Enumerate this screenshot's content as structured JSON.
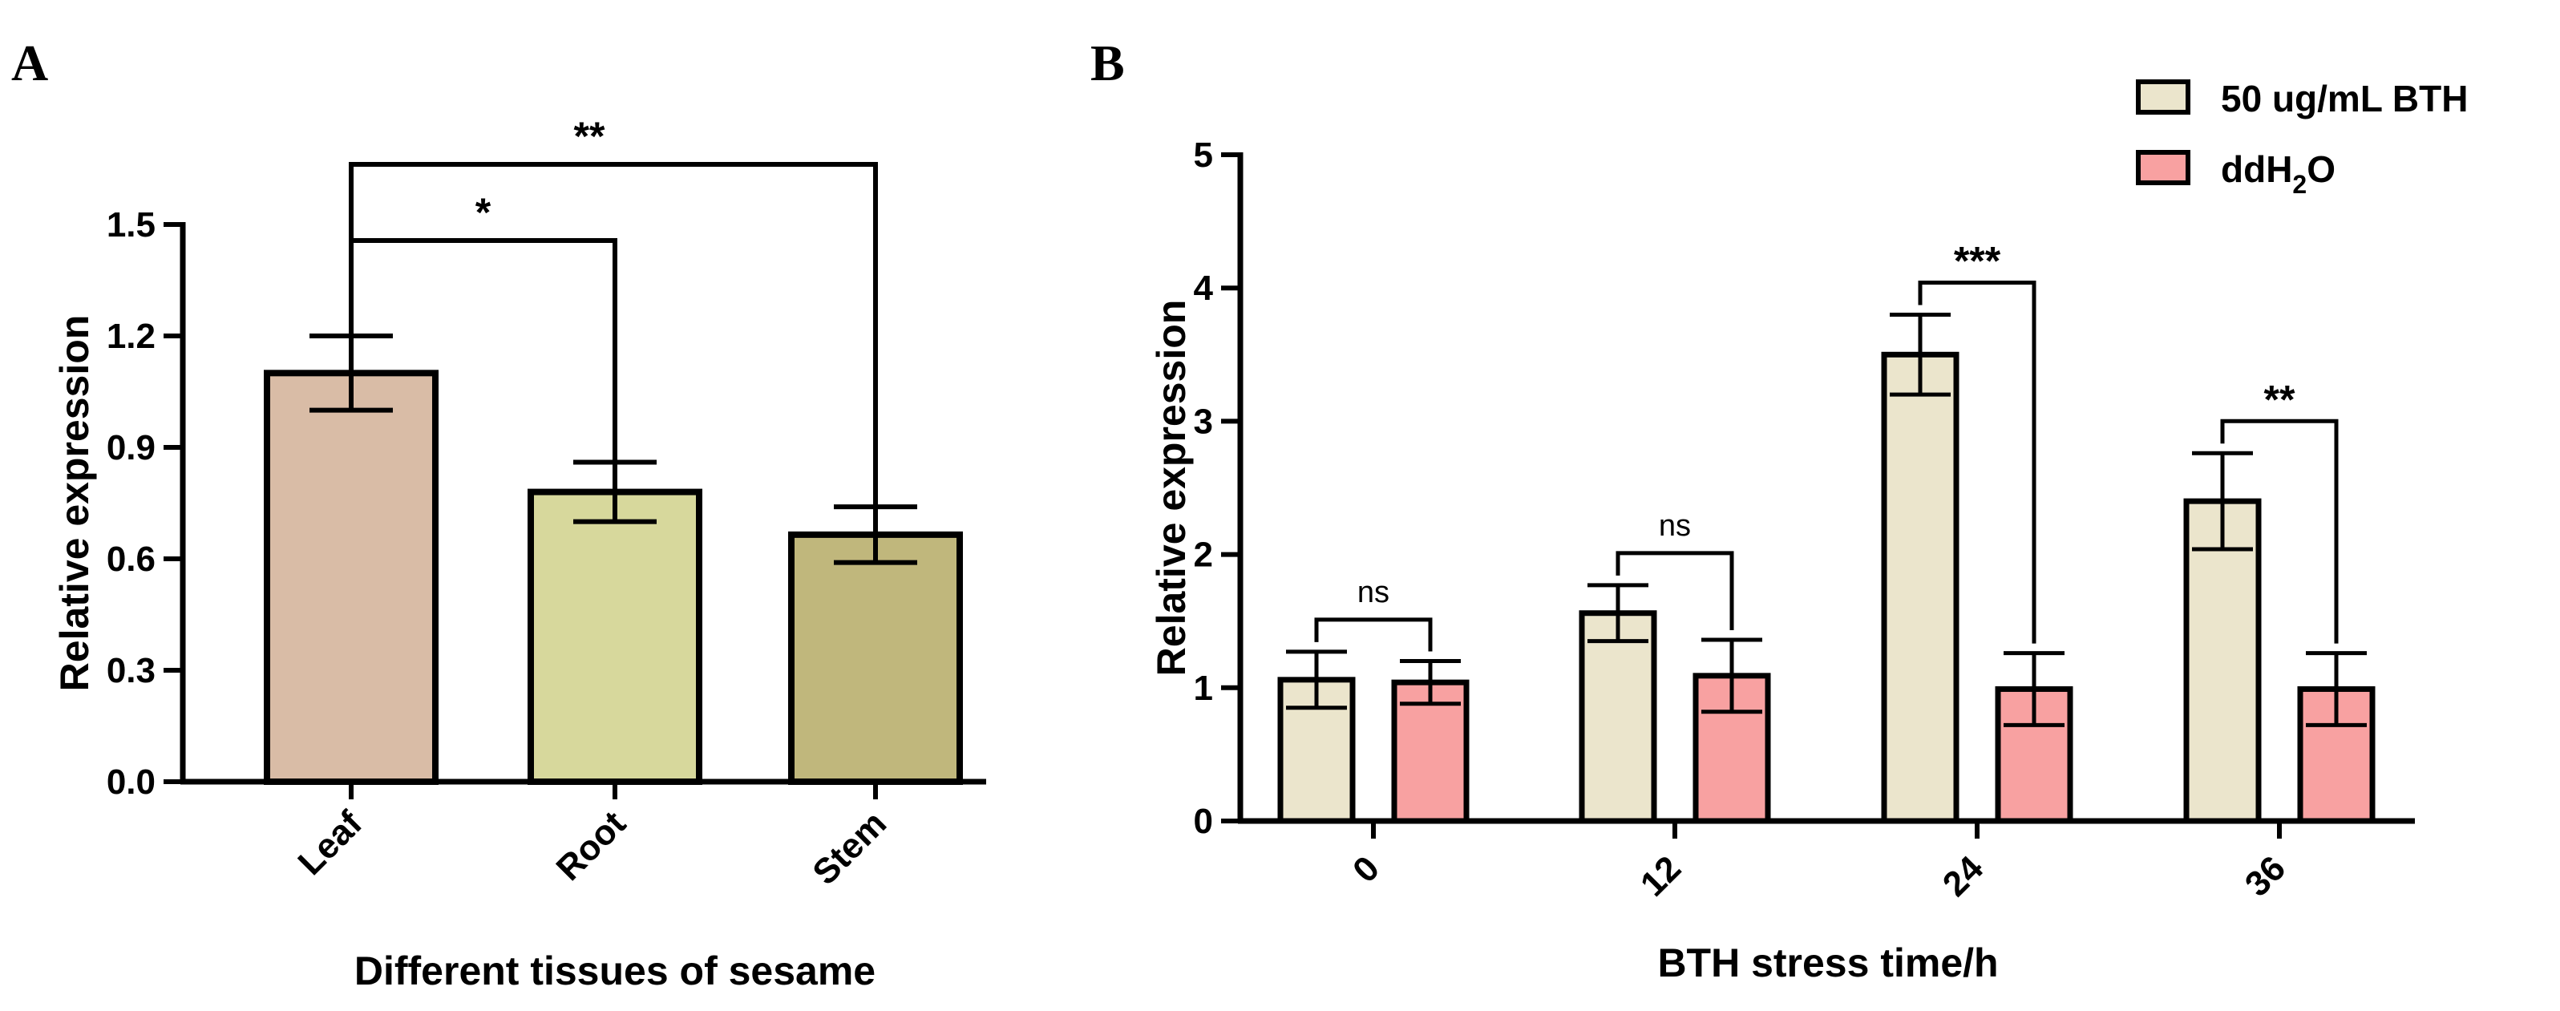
{
  "chart_data": [
    {
      "panel": "A",
      "type": "bar",
      "title": "",
      "xlabel": "Different tissues of sesame",
      "ylabel": "Relative expression",
      "ylim": [
        0,
        1.5
      ],
      "yticks": [
        "0.0",
        "0.3",
        "0.6",
        "0.9",
        "1.2",
        "1.5"
      ],
      "categories": [
        "Leaf",
        "Root",
        "Stem"
      ],
      "values": [
        1.1,
        0.78,
        0.665
      ],
      "errors": [
        0.1,
        0.08,
        0.075
      ],
      "colors": [
        "#d9bca6",
        "#d7d89c",
        "#c0b77c"
      ],
      "significance": [
        {
          "from": 0,
          "to": 1,
          "label": "*"
        },
        {
          "from": 0,
          "to": 2,
          "label": "**"
        }
      ]
    },
    {
      "panel": "B",
      "type": "bar",
      "title": "",
      "xlabel": "BTH stress time/h",
      "ylabel": "Relative expression",
      "ylim": [
        0,
        5
      ],
      "yticks": [
        "0",
        "1",
        "2",
        "3",
        "4",
        "5"
      ],
      "categories": [
        "0",
        "12",
        "24",
        "36"
      ],
      "series": [
        {
          "name": "50 ug/mL BTH",
          "values": [
            1.06,
            1.56,
            3.5,
            2.4
          ],
          "errors": [
            0.21,
            0.21,
            0.3,
            0.36
          ],
          "color": "#ebe5cc"
        },
        {
          "name": "ddH2O",
          "label_main": "ddH",
          "label_sub": "2",
          "label_tail": "O",
          "values": [
            1.04,
            1.09,
            0.99,
            0.99
          ],
          "errors": [
            0.16,
            0.27,
            0.27,
            0.27
          ],
          "color": "#f8a1a1"
        }
      ],
      "significance": [
        {
          "category": 0,
          "label": "ns"
        },
        {
          "category": 1,
          "label": "ns"
        },
        {
          "category": 2,
          "label": "***"
        },
        {
          "category": 3,
          "label": "**"
        }
      ],
      "legend_position": "top-right"
    }
  ]
}
